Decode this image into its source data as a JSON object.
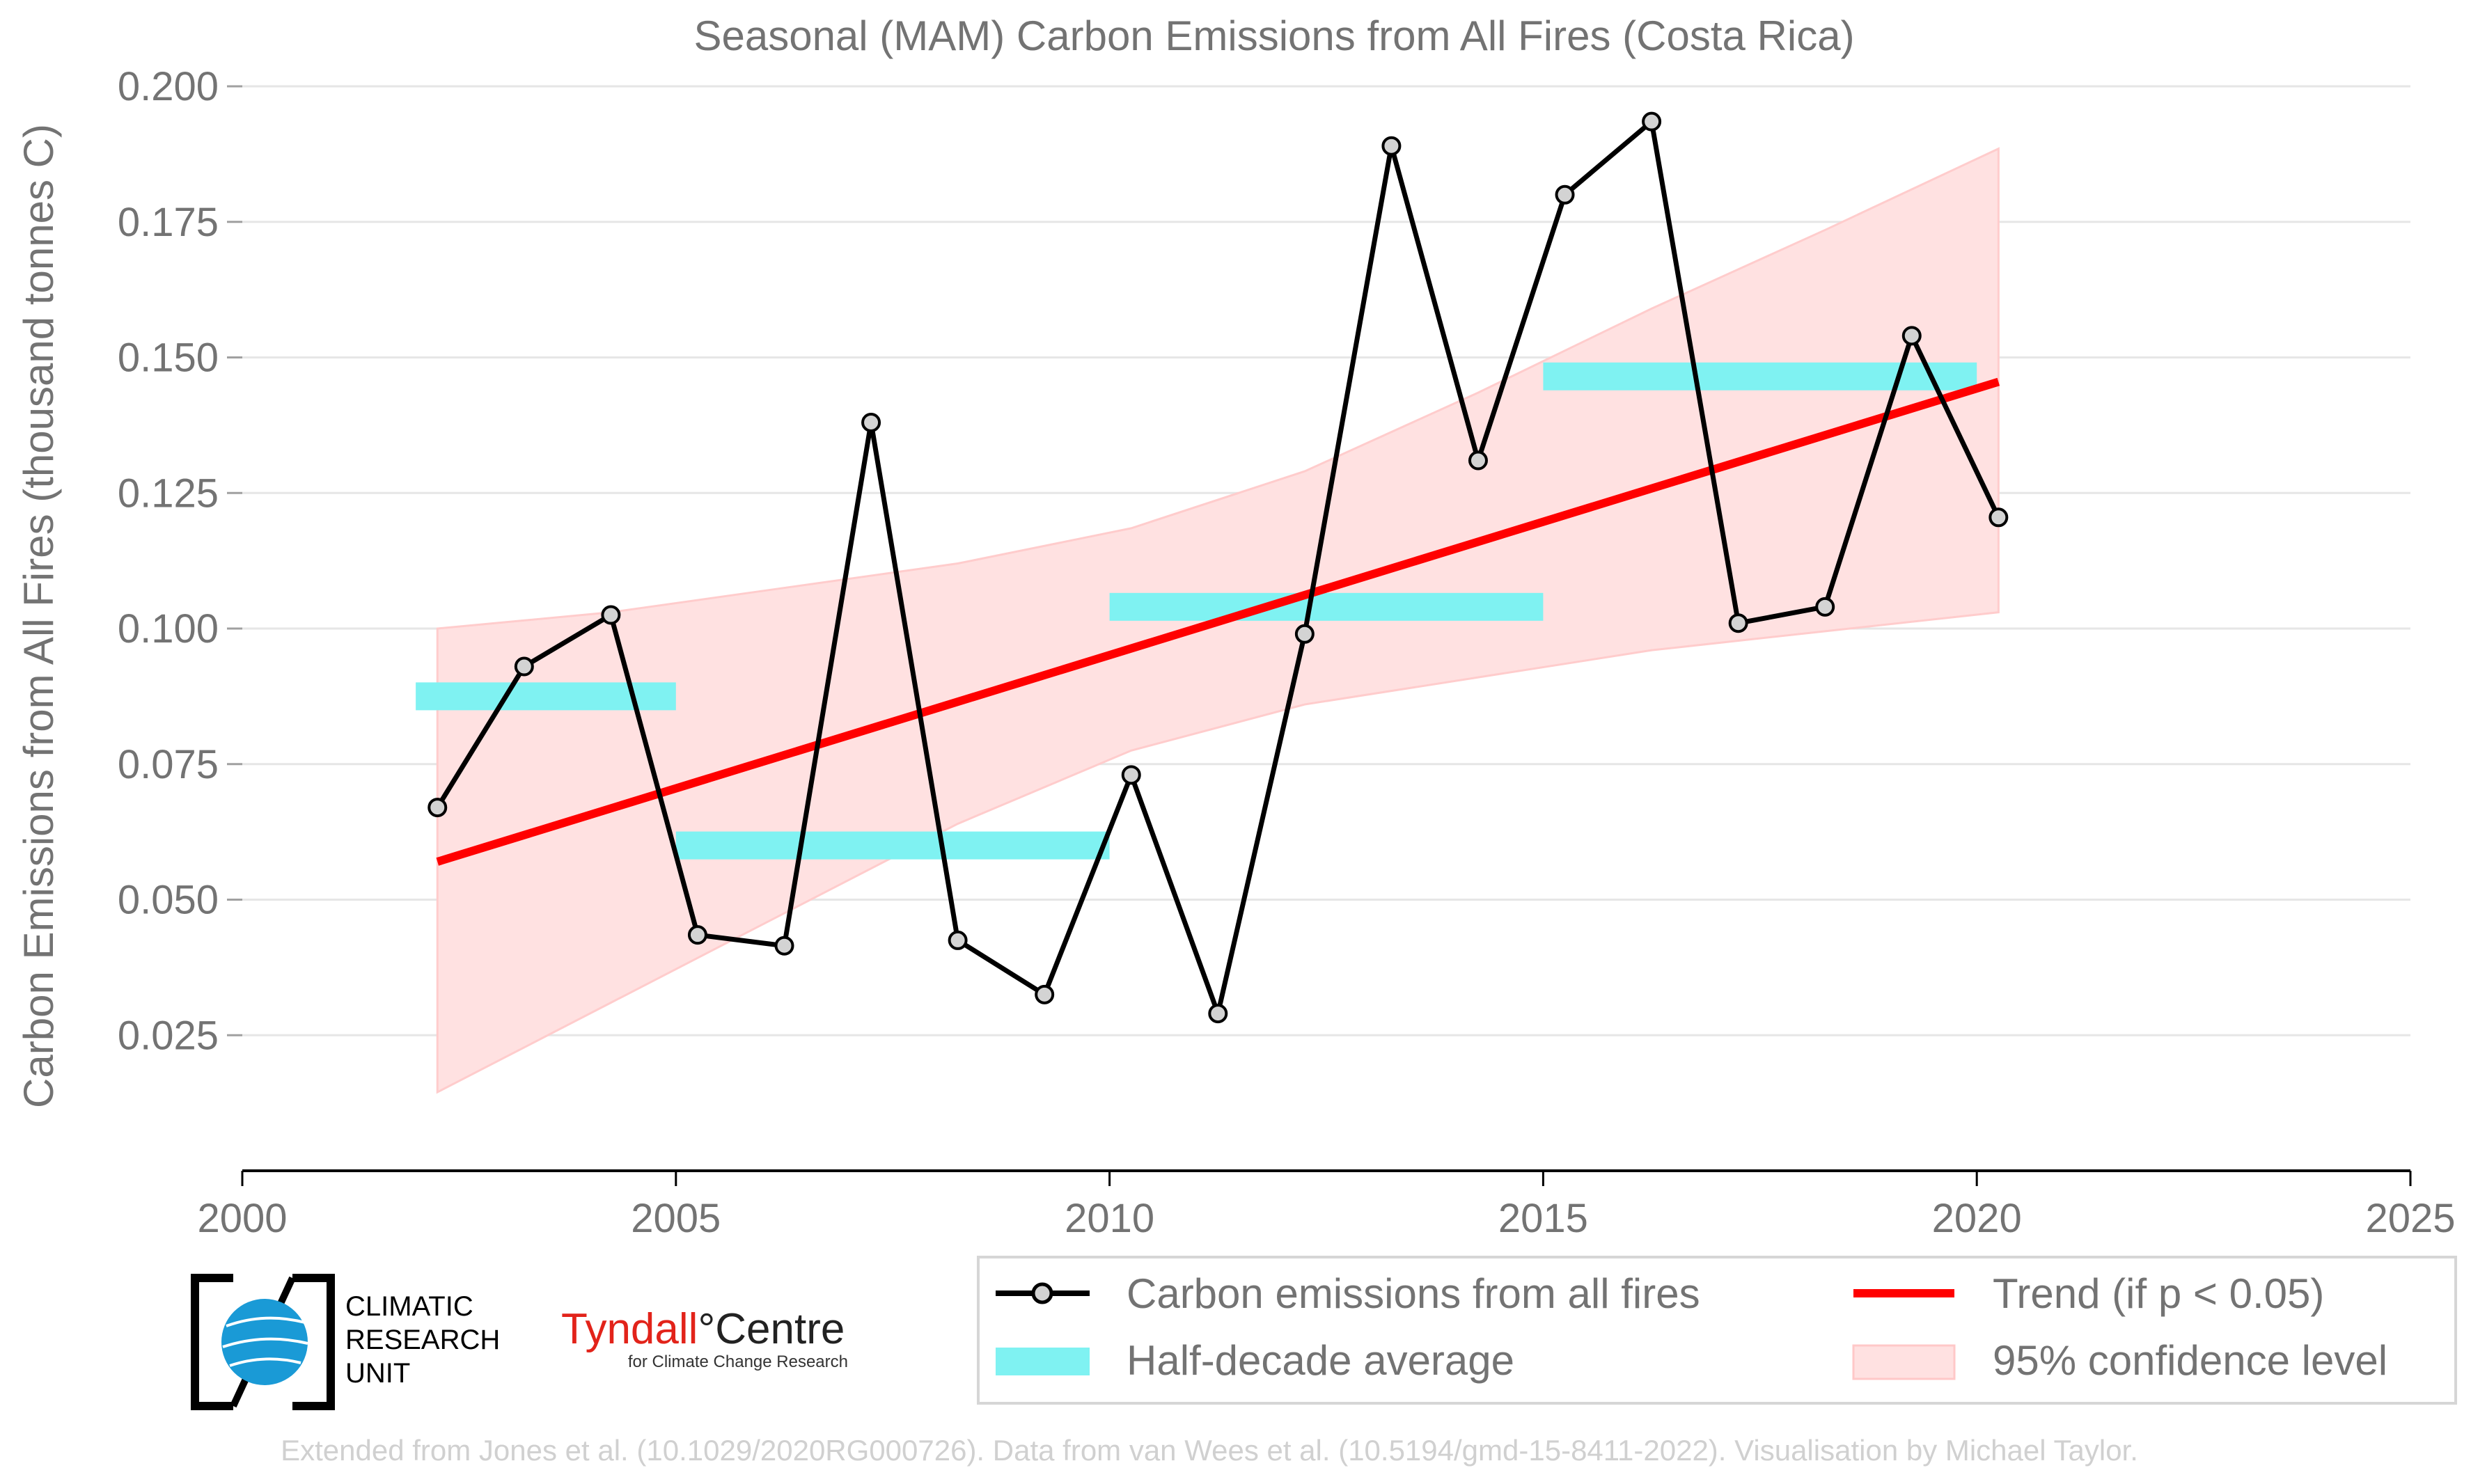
{
  "chart_data": {
    "type": "line",
    "title": "Seasonal (MAM) Carbon Emissions from All Fires (Costa Rica)",
    "ylabel": "Carbon Emissions from All Fires (thousand tonnes C)",
    "xlabel": "",
    "xlim": [
      2000,
      2025
    ],
    "ylim": [
      0.0,
      0.2
    ],
    "xticks": [
      "2000",
      "2005",
      "2010",
      "2015",
      "2020",
      "2025"
    ],
    "yticks": [
      "0.025",
      "0.050",
      "0.075",
      "0.100",
      "0.125",
      "0.150",
      "0.175",
      "0.200"
    ],
    "grid": "horizontal",
    "series": [
      {
        "name": "Carbon emissions from all fires",
        "color": "#000000",
        "marker_fill": "#d3d3d3",
        "x": [
          2002.25,
          2003.25,
          2004.25,
          2005.25,
          2006.25,
          2007.25,
          2008.25,
          2009.25,
          2010.25,
          2011.25,
          2012.25,
          2013.25,
          2014.25,
          2015.25,
          2016.25,
          2017.25,
          2018.25,
          2019.25,
          2020.25
        ],
        "y": [
          0.067,
          0.093,
          0.1025,
          0.0435,
          0.0415,
          0.138,
          0.0425,
          0.0325,
          0.073,
          0.029,
          0.099,
          0.189,
          0.131,
          0.18,
          0.1935,
          0.101,
          0.104,
          0.154,
          0.1205
        ]
      },
      {
        "name": "Half-decade average",
        "color": "#7ff2f2",
        "segments": [
          {
            "x0": 2002,
            "x1": 2005,
            "y": 0.0875
          },
          {
            "x0": 2005,
            "x1": 2010,
            "y": 0.06
          },
          {
            "x0": 2010,
            "x1": 2015,
            "y": 0.104
          },
          {
            "x0": 2015,
            "x1": 2020,
            "y": 0.1465
          }
        ]
      },
      {
        "name": "Trend (if p < 0.05)",
        "color": "#ff0000",
        "x": [
          2002.25,
          2020.25
        ],
        "y": [
          0.057,
          0.1455
        ]
      },
      {
        "name": "95% confidence level",
        "color": "#ffcccc",
        "x": [
          2002.25,
          2004.25,
          2006.25,
          2008.25,
          2010.25,
          2012.25,
          2014.25,
          2016.25,
          2018.25,
          2020.25
        ],
        "upper": [
          0.1,
          0.103,
          0.1075,
          0.112,
          0.1185,
          0.129,
          0.1435,
          0.159,
          0.1735,
          0.1885
        ],
        "lower": [
          0.0145,
          0.031,
          0.0475,
          0.064,
          0.0775,
          0.086,
          0.091,
          0.096,
          0.0995,
          0.103
        ]
      }
    ],
    "legend": {
      "placement": "bottom-right",
      "entries": [
        "Carbon emissions from all fires",
        "Trend (if p < 0.05)",
        "Half-decade average",
        "95% confidence level"
      ]
    }
  },
  "logos": {
    "cru": [
      "CLIMATIC",
      "RESEARCH",
      "UNIT"
    ],
    "tyndall_name": "Tyndall",
    "tyndall_degree": "°",
    "tyndall_centre": "Centre",
    "tyndall_sub": "for Climate Change Research"
  },
  "credit": "Extended from Jones et al. (10.1029/2020RG000726). Data from van Wees et al. (10.5194/gmd-15-8411-2022). Visualisation by Michael Taylor."
}
